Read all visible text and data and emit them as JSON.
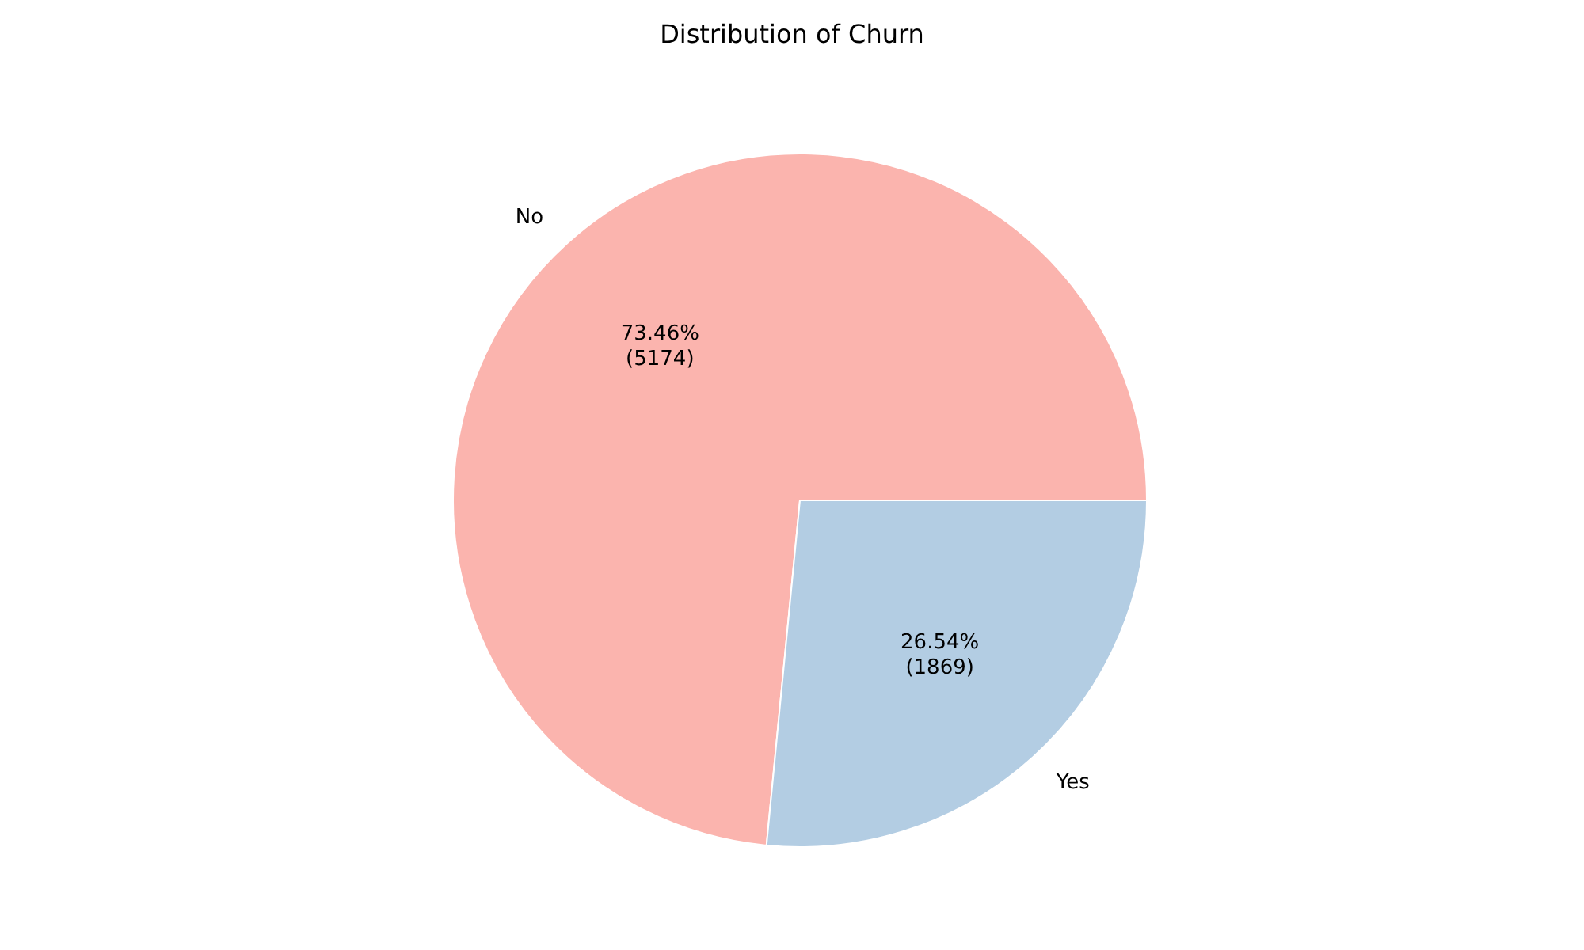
{
  "chart_data": {
    "type": "pie",
    "title": "Distribution of Churn",
    "categories": [
      "No",
      "Yes"
    ],
    "values": [
      5174,
      1869
    ],
    "colors": [
      "#fbb4ae",
      "#b3cde3"
    ],
    "value_labels": [
      "73.46%\n(5174)",
      "26.54%\n(1869)"
    ]
  }
}
